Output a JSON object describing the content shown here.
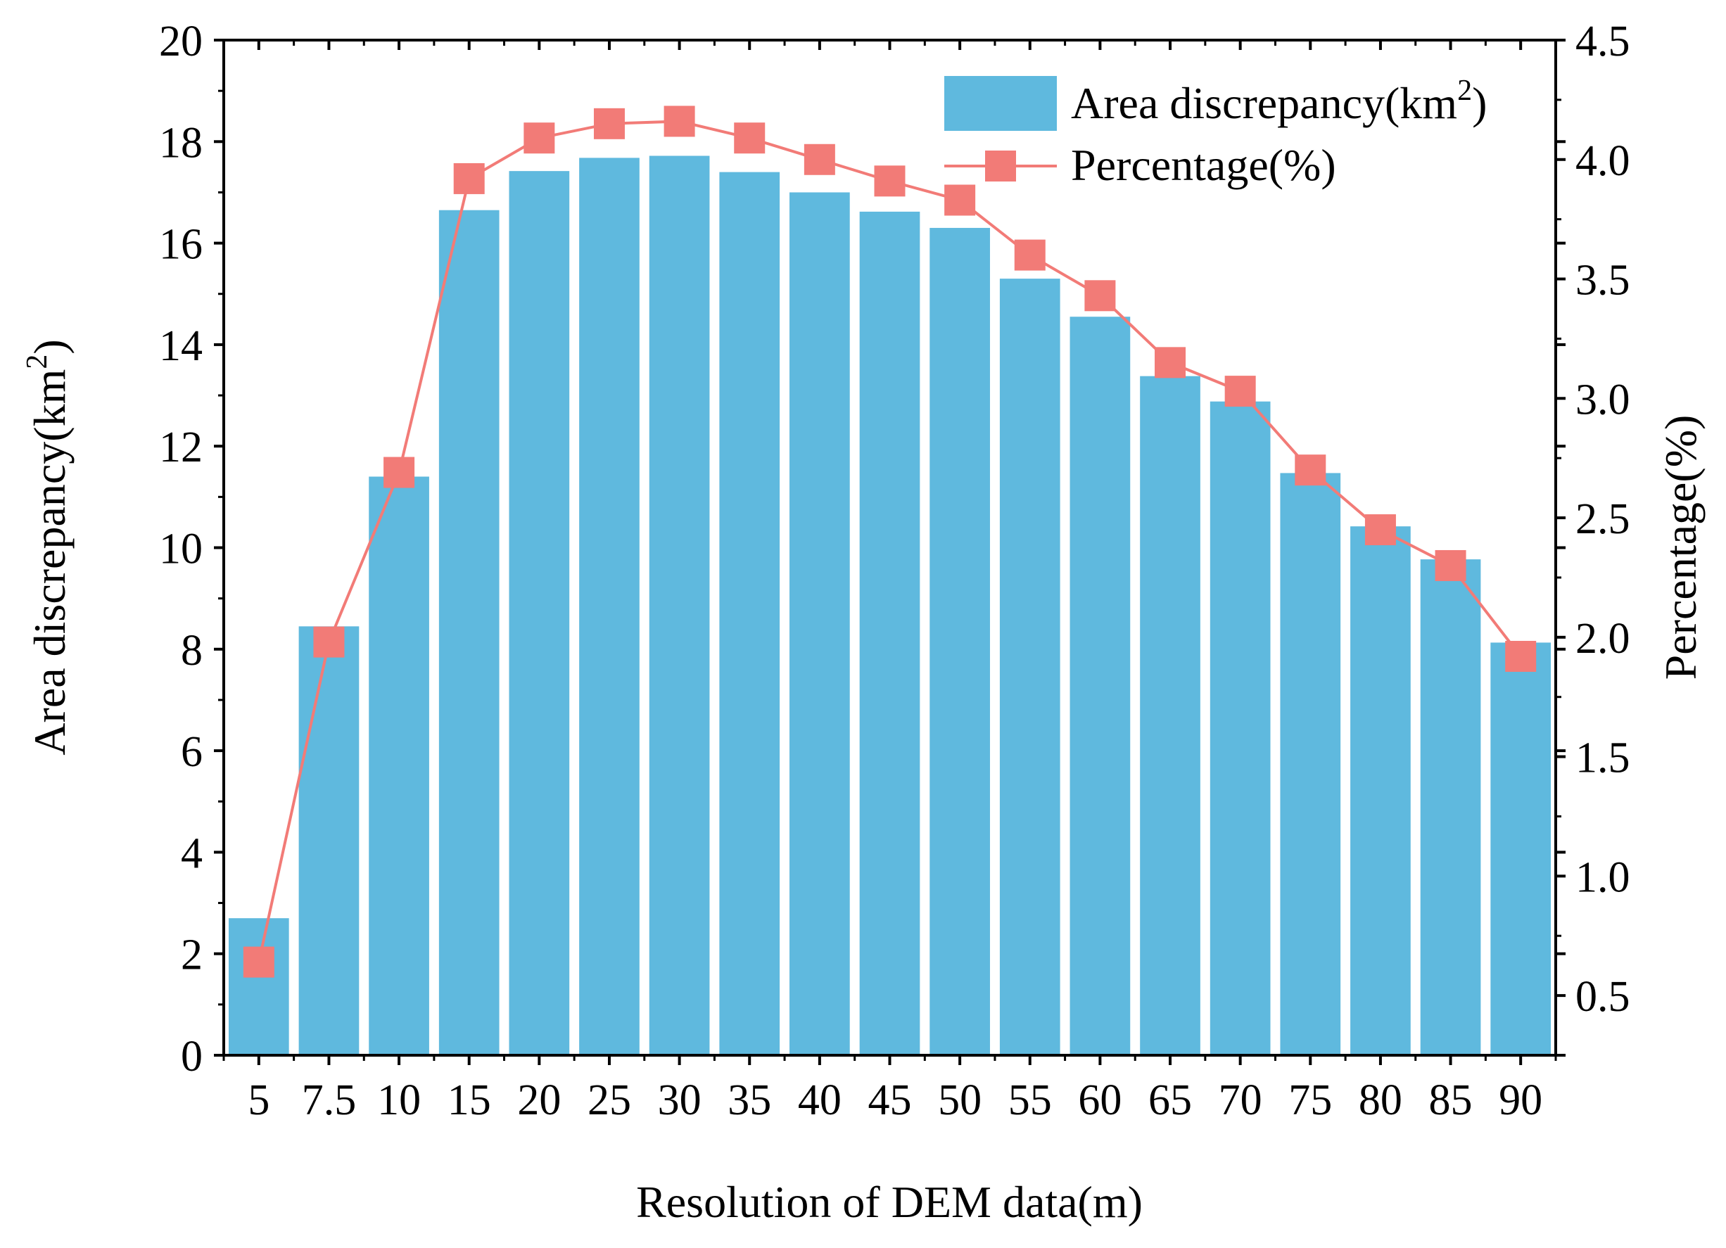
{
  "chart_data": {
    "type": "bar+line",
    "xlabel": "Resolution of DEM data(m)",
    "categories": [
      "5",
      "7.5",
      "10",
      "15",
      "20",
      "25",
      "30",
      "35",
      "40",
      "45",
      "50",
      "55",
      "60",
      "65",
      "70",
      "75",
      "80",
      "85",
      "90"
    ],
    "y_left": {
      "label_prefix": "Area discrepancy(km",
      "label_sup": "2",
      "label_suffix": ")",
      "range": [
        0,
        20
      ],
      "ticks": [
        "0",
        "2",
        "4",
        "6",
        "8",
        "10",
        "12",
        "14",
        "16",
        "18",
        "20"
      ]
    },
    "y_right": {
      "label": "Percentage(%)",
      "range": [
        0.25,
        4.5
      ],
      "ticks": [
        "0.5",
        "1.0",
        "1.5",
        "2.0",
        "2.5",
        "3.0",
        "3.5",
        "4.0",
        "4.5"
      ]
    },
    "series": [
      {
        "name": "Area discrepancy(km2)",
        "legend_prefix": "Area discrepancy(km",
        "legend_sup": "2",
        "legend_suffix": ")",
        "kind": "bar",
        "axis": "left",
        "color": "#5fb9de",
        "values": [
          2.7,
          8.45,
          11.4,
          16.65,
          17.42,
          17.68,
          17.72,
          17.4,
          17.0,
          16.62,
          16.3,
          15.3,
          14.55,
          13.38,
          12.88,
          11.47,
          10.42,
          9.77,
          8.13
        ]
      },
      {
        "name": "Percentage(%)",
        "kind": "line",
        "axis": "right",
        "color": "#f27b77",
        "marker": "square",
        "values": [
          0.64,
          1.98,
          2.69,
          3.92,
          4.09,
          4.15,
          4.16,
          4.09,
          4.0,
          3.91,
          3.83,
          3.6,
          3.43,
          3.15,
          3.03,
          2.7,
          2.45,
          2.3,
          1.92
        ]
      }
    ],
    "legend_position": "top-right"
  }
}
